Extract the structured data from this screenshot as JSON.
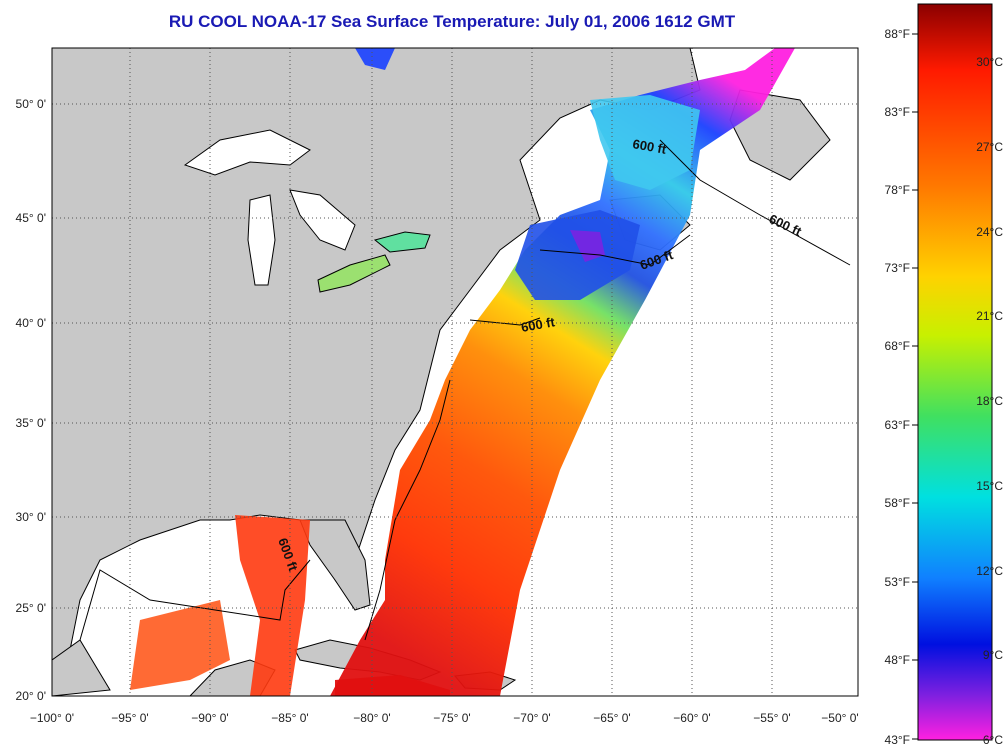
{
  "title": "RU COOL  NOAA-17  Sea Surface Temperature:  July 01, 2006 1612 GMT",
  "map": {
    "lon_range": [
      -100,
      -50
    ],
    "lat_range": [
      20,
      52
    ],
    "lon_ticks": [
      "−100° 0'",
      "−95° 0'",
      "−90° 0'",
      "−85° 0'",
      "−80° 0'",
      "−75° 0'",
      "−70° 0'",
      "−65° 0'",
      "−60° 0'",
      "−55° 0'",
      "−50° 0'"
    ],
    "lat_ticks": [
      "20° 0'",
      "25° 0'",
      "30° 0'",
      "35° 0'",
      "40° 0'",
      "45° 0'",
      "50° 0'"
    ],
    "contour_labels": [
      "600 ft",
      "600 ft",
      "600 ft",
      "600 ft",
      "600 ft"
    ],
    "colors": {
      "land": "#c8c8c8",
      "ocean_no_data": "#ffffff",
      "grid": "#555555"
    }
  },
  "colorbar": {
    "fahrenheit": [
      "88°F",
      "83°F",
      "78°F",
      "73°F",
      "68°F",
      "63°F",
      "58°F",
      "53°F",
      "48°F",
      "43°F"
    ],
    "celsius": [
      "30°C",
      "27°C",
      "24°C",
      "21°C",
      "18°C",
      "15°C",
      "12°C",
      "9°C",
      "6°C"
    ],
    "gradient": [
      "#8b0000",
      "#ff1a00",
      "#ff7a00",
      "#ffd200",
      "#c8f000",
      "#40e060",
      "#00e0e0",
      "#1080ff",
      "#0010e0",
      "#8020e0",
      "#ff20e0"
    ]
  }
}
